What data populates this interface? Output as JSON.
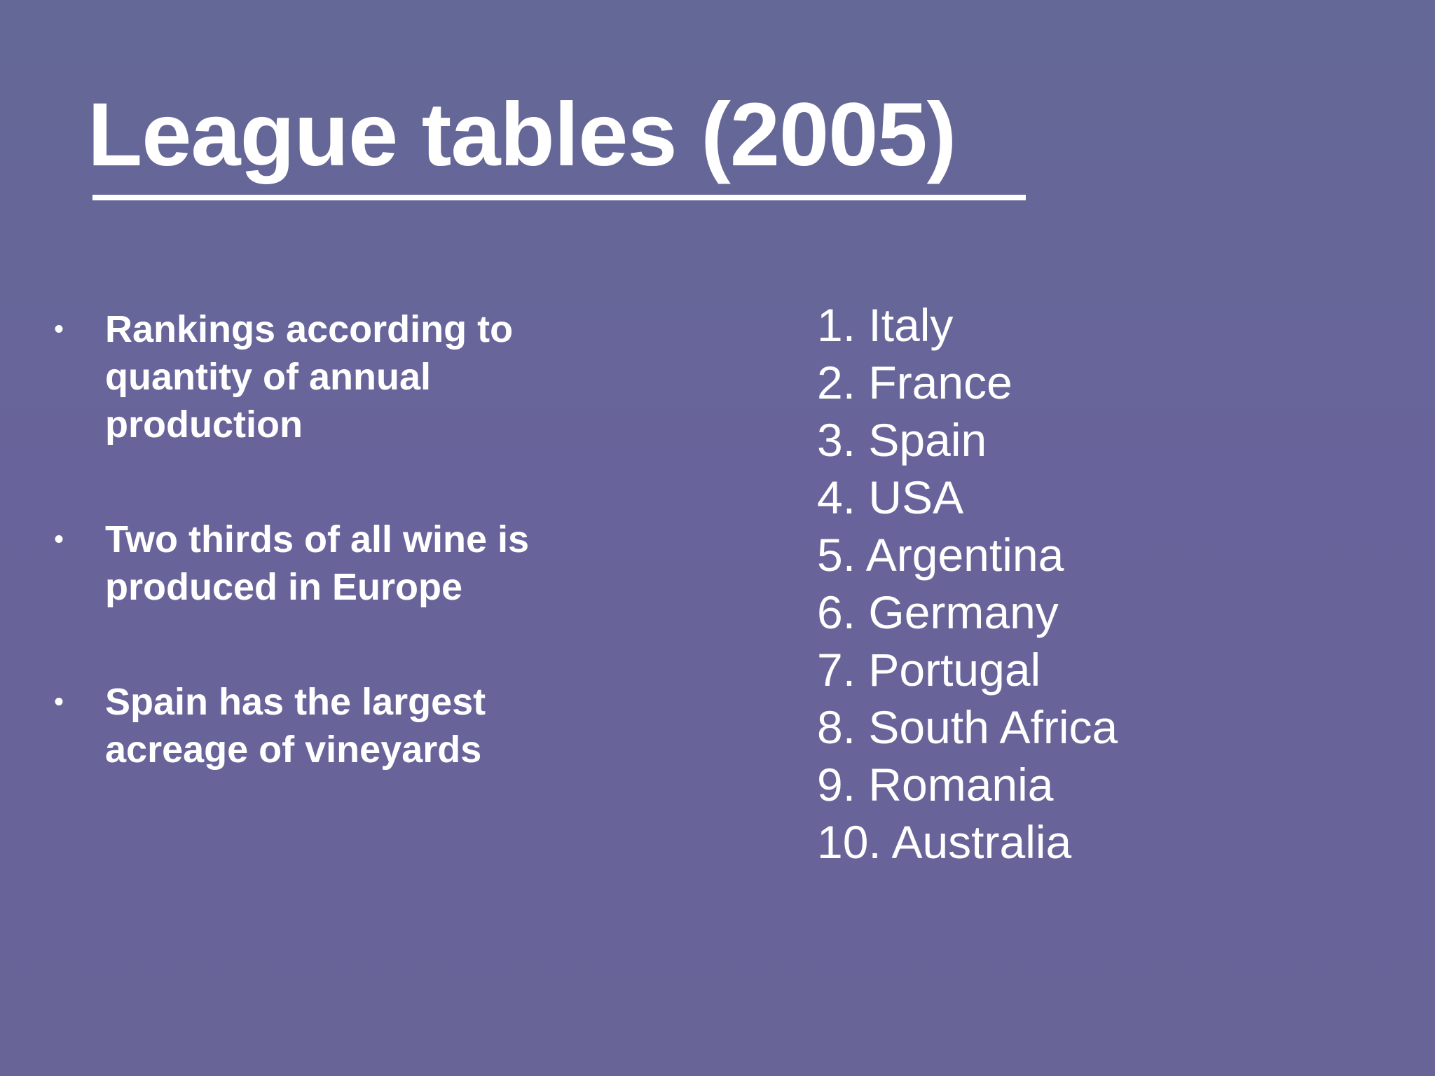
{
  "slide": {
    "title": "League tables (2005)",
    "bullets": [
      "Rankings according to quantity of annual production",
      "Two thirds of all wine is produced in Europe",
      "Spain has the largest acreage of vineyards"
    ],
    "ranking": [
      "1. Italy",
      "2. France",
      "3. Spain",
      "4. USA",
      "5. Argentina",
      "6. Germany",
      "7. Portugal",
      "8. South Africa",
      "9. Romania",
      "10. Australia"
    ],
    "colors": {
      "background": "#67679a",
      "text": "#ffffff"
    }
  }
}
